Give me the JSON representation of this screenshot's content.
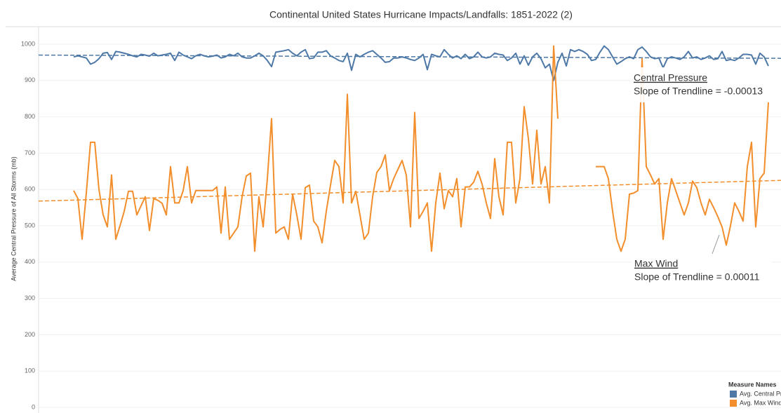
{
  "chart_data": {
    "type": "line",
    "title": "Continental United States Hurricane Impacts/Landfalls: 1851-2022 (2)",
    "y_label": "Average Central Pressure of All Storms (mb)",
    "ylim": [
      0,
      1000
    ],
    "yticks": [
      0,
      100,
      200,
      300,
      400,
      500,
      600,
      700,
      800,
      900,
      1000
    ],
    "grid": true,
    "legend": {
      "title": "Measure Names",
      "position": "bottom-right"
    },
    "series": [
      {
        "name": "Avg. Central Pressure",
        "color": "#4e79a7",
        "trendline": [
          970,
          961
        ],
        "values": [
          965,
          968,
          965,
          962,
          945,
          950,
          960,
          975,
          977,
          958,
          980,
          978,
          975,
          972,
          968,
          965,
          972,
          970,
          967,
          975,
          968,
          970,
          972,
          975,
          955,
          978,
          970,
          965,
          960,
          968,
          972,
          968,
          965,
          967,
          970,
          962,
          965,
          972,
          968,
          975,
          965,
          962,
          962,
          968,
          975,
          968,
          955,
          938,
          978,
          980,
          982,
          985,
          975,
          968,
          978,
          985,
          960,
          962,
          978,
          978,
          982,
          968,
          962,
          955,
          952,
          975,
          928,
          972,
          965,
          972,
          978,
          982,
          972,
          962,
          950,
          952,
          962,
          962,
          965,
          962,
          958,
          955,
          962,
          972,
          930,
          972,
          968,
          965,
          985,
          972,
          962,
          968,
          960,
          972,
          960,
          965,
          978,
          965,
          962,
          965,
          975,
          972,
          970,
          955,
          962,
          975,
          945,
          968,
          942,
          965,
          975,
          960,
          935,
          945,
          900,
          950,
          975,
          940,
          985,
          980,
          985,
          980,
          972,
          955,
          958,
          978,
          995,
          985,
          965,
          945,
          952,
          960,
          965,
          960,
          985,
          992,
          980,
          965,
          960,
          962,
          935,
          960,
          965,
          962,
          958,
          965,
          980,
          962,
          965,
          958,
          962,
          968,
          958,
          960,
          980,
          955,
          958,
          955,
          962,
          972,
          972,
          970,
          945,
          975,
          965,
          940
        ]
      },
      {
        "name": "Avg. Max Wind",
        "color": "#f28e2b",
        "trendline": [
          568,
          625
        ],
        "values": [
          597,
          575,
          463,
          590,
          730,
          730,
          600,
          530,
          497,
          640,
          463,
          500,
          540,
          595,
          595,
          530,
          555,
          580,
          487,
          575,
          570,
          562,
          530,
          663,
          563,
          563,
          597,
          663,
          563,
          597,
          597,
          597,
          597,
          597,
          607,
          480,
          607,
          463,
          480,
          497,
          580,
          637,
          645,
          430,
          580,
          497,
          630,
          795,
          480,
          490,
          497,
          463,
          587,
          530,
          463,
          605,
          612,
          513,
          497,
          453,
          540,
          612,
          680,
          663,
          563,
          862,
          563,
          595,
          530,
          463,
          480,
          580,
          647,
          663,
          695,
          597,
          630,
          655,
          680,
          640,
          497,
          812,
          520,
          540,
          563,
          430,
          563,
          645,
          547,
          597,
          580,
          630,
          497,
          607,
          607,
          620,
          650,
          615,
          563,
          520,
          685,
          580,
          530,
          730,
          730,
          563,
          630,
          828,
          740,
          615,
          763,
          615,
          663,
          563,
          995,
          795,
          null,
          null,
          null,
          null,
          null,
          null,
          null,
          null,
          663,
          663,
          663,
          630,
          540,
          463,
          430,
          463,
          587,
          590,
          597,
          960,
          663,
          640,
          615,
          630,
          463,
          563,
          630,
          597,
          563,
          530,
          563,
          623,
          605,
          563,
          530,
          573,
          550,
          525,
          497,
          447,
          500,
          563,
          540,
          513,
          663,
          730,
          497,
          630,
          645,
          840
        ]
      }
    ],
    "annotations": [
      {
        "title": "Central Pressure",
        "text": "Slope of Trendline = -0.00013"
      },
      {
        "title": "Max Wind",
        "text": "Slope of Trendline = 0.00011"
      }
    ]
  }
}
